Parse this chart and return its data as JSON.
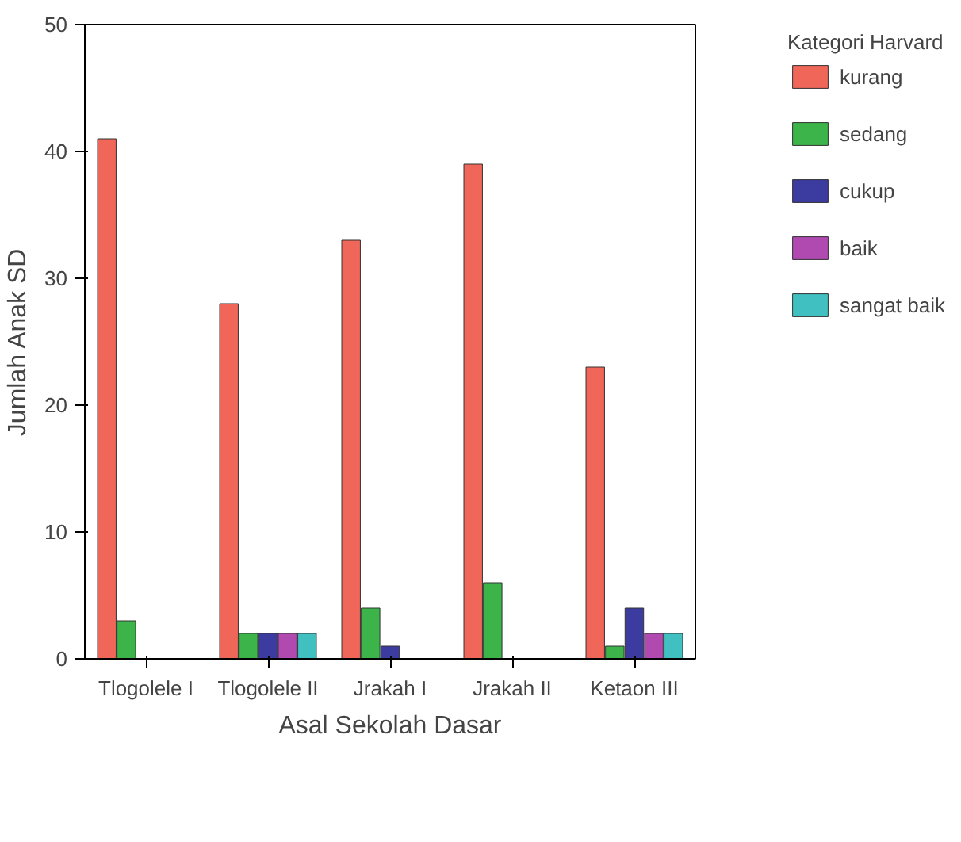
{
  "chart_data": {
    "type": "bar",
    "xlabel": "Asal Sekolah Dasar",
    "ylabel": "Jumlah Anak SD",
    "legend_title": "Kategori Harvard",
    "categories": [
      "Tlogolele I",
      "Tlogolele II",
      "Jrakah I",
      "Jrakah II",
      "Ketaon III"
    ],
    "series": [
      {
        "name": "kurang",
        "color": "#f0675a",
        "values": [
          41,
          28,
          33,
          39,
          23
        ]
      },
      {
        "name": "sedang",
        "color": "#3cb44a",
        "values": [
          3,
          2,
          4,
          6,
          1
        ]
      },
      {
        "name": "cukup",
        "color": "#3c3ca0",
        "values": [
          null,
          2,
          1,
          null,
          4
        ]
      },
      {
        "name": "baik",
        "color": "#b04ab0",
        "values": [
          null,
          2,
          null,
          null,
          2
        ]
      },
      {
        "name": "sangat baik",
        "color": "#40c0c0",
        "values": [
          null,
          2,
          null,
          null,
          2
        ]
      }
    ],
    "ylim": [
      0,
      50
    ],
    "yticks": [
      0,
      10,
      20,
      30,
      40,
      50
    ],
    "grid": false,
    "legend": "right"
  }
}
